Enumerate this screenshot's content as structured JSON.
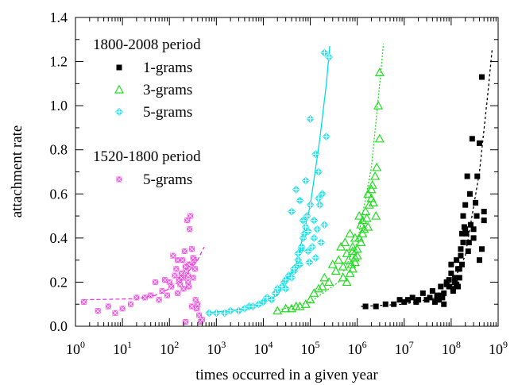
{
  "chart_data": {
    "type": "scatter",
    "title": "",
    "xlabel": "times occurred in a given year",
    "ylabel": "attachment rate",
    "x_scale": "log",
    "xlim": [
      1,
      1000000000
    ],
    "ylim": [
      0,
      1.4
    ],
    "x_ticks": [
      {
        "base": "10",
        "exp": "0"
      },
      {
        "base": "10",
        "exp": "1"
      },
      {
        "base": "10",
        "exp": "2"
      },
      {
        "base": "10",
        "exp": "3"
      },
      {
        "base": "10",
        "exp": "4"
      },
      {
        "base": "10",
        "exp": "5"
      },
      {
        "base": "10",
        "exp": "6"
      },
      {
        "base": "10",
        "exp": "7"
      },
      {
        "base": "10",
        "exp": "8"
      },
      {
        "base": "10",
        "exp": "9"
      }
    ],
    "y_ticks": [
      "0.0",
      "0.2",
      "0.4",
      "0.6",
      "0.8",
      "1.0",
      "1.2",
      "1.4"
    ],
    "grid": false,
    "legend_groups": [
      {
        "heading": "1800-2008 period",
        "entries": [
          {
            "label": "1-grams",
            "series": "s1"
          },
          {
            "label": "3-grams",
            "series": "s3"
          },
          {
            "label": "5-grams",
            "series": "s5"
          }
        ]
      },
      {
        "heading": "1520-1800 period",
        "entries": [
          {
            "label": "5-grams",
            "series": "sh"
          }
        ]
      }
    ],
    "series": [
      {
        "id": "sh",
        "color": "#ee33dd",
        "marker": "square-cross",
        "x": [
          1.5,
          3,
          5,
          7,
          10,
          15,
          20,
          30,
          40,
          50,
          60,
          70,
          80,
          90,
          100,
          110,
          120,
          130,
          140,
          150,
          160,
          170,
          180,
          190,
          200,
          210,
          220,
          230,
          240,
          250,
          260,
          270,
          280,
          300,
          320,
          340,
          360,
          380,
          400,
          430,
          460,
          500,
          150,
          200,
          250,
          300,
          220,
          180,
          280,
          350,
          260,
          320
        ],
        "y": [
          0.11,
          0.07,
          0.09,
          0.06,
          0.08,
          0.1,
          0.13,
          0.13,
          0.14,
          0.2,
          0.12,
          0.16,
          0.21,
          0.14,
          0.2,
          0.18,
          0.32,
          0.23,
          0.26,
          0.3,
          0.21,
          0.19,
          0.24,
          0.3,
          0.22,
          0.34,
          0.27,
          0.25,
          0.48,
          0.2,
          0.18,
          0.44,
          0.28,
          0.35,
          0.22,
          0.3,
          0.12,
          0.08,
          0.1,
          0.05,
          0.02,
          0.03,
          0.15,
          0.17,
          0.23,
          0.09,
          0.02,
          0.22,
          0.5,
          0.26,
          0.28,
          0.31
        ],
        "fit": {
          "x": [
            1.5,
            20,
            50,
            100,
            200,
            400,
            550
          ],
          "y": [
            0.12,
            0.125,
            0.14,
            0.17,
            0.22,
            0.3,
            0.36
          ]
        }
      },
      {
        "id": "s5",
        "color": "#00dde6",
        "marker": "plus-diamond",
        "x": [
          700,
          1000,
          1500,
          2000,
          3000,
          4000,
          5000,
          6000,
          8000,
          10000,
          12000,
          15000,
          18000,
          20000,
          25000,
          28000,
          30000,
          35000,
          40000,
          45000,
          50000,
          55000,
          60000,
          65000,
          70000,
          75000,
          80000,
          90000,
          100000,
          110000,
          120000,
          130000,
          150000,
          170000,
          200000,
          220000,
          250000,
          40000,
          50000,
          60000,
          70000,
          80000,
          90000,
          100000,
          120000,
          140000,
          160000,
          180000,
          30000,
          45000,
          55000,
          65000,
          85000,
          95000,
          130000,
          150000,
          200000
        ],
        "y": [
          0.06,
          0.06,
          0.06,
          0.07,
          0.07,
          0.08,
          0.09,
          0.09,
          0.1,
          0.11,
          0.13,
          0.12,
          0.15,
          0.17,
          0.18,
          0.2,
          0.17,
          0.23,
          0.22,
          0.25,
          0.27,
          0.3,
          0.28,
          0.35,
          0.4,
          0.42,
          0.45,
          0.43,
          0.55,
          0.36,
          0.48,
          0.31,
          0.58,
          0.38,
          0.46,
          0.86,
          1.22,
          0.52,
          0.62,
          0.57,
          0.48,
          0.66,
          0.34,
          0.94,
          0.4,
          0.44,
          0.55,
          0.6,
          0.21,
          0.26,
          0.33,
          0.36,
          0.5,
          0.29,
          0.78,
          0.7,
          1.24
        ],
        "fit": {
          "x": [
            600,
            5000,
            20000,
            50000,
            100000,
            160000,
            220000,
            260000
          ],
          "y": [
            0.06,
            0.08,
            0.14,
            0.28,
            0.55,
            0.85,
            1.1,
            1.27
          ]
        }
      },
      {
        "id": "s3",
        "color": "#22dd22",
        "marker": "triangle",
        "x": [
          20000,
          30000,
          40000,
          50000,
          60000,
          80000,
          100000,
          120000,
          150000,
          180000,
          200000,
          250000,
          300000,
          350000,
          400000,
          450000,
          500000,
          550000,
          600000,
          650000,
          700000,
          750000,
          800000,
          900000,
          1000000,
          1100000,
          1200000,
          1300000,
          1500000,
          1700000,
          2000000,
          2200000,
          2500000,
          2800000,
          3000000,
          600000,
          700000,
          800000,
          900000,
          1000000,
          1200000,
          1400000,
          1600000,
          1800000,
          2000000,
          2400000,
          500000,
          900000,
          1300000,
          1700000,
          2100000,
          2600000,
          3000000,
          800000,
          1100000
        ],
        "y": [
          0.07,
          0.08,
          0.08,
          0.09,
          0.09,
          0.1,
          0.12,
          0.15,
          0.17,
          0.18,
          0.22,
          0.2,
          0.28,
          0.25,
          0.3,
          0.36,
          0.27,
          0.38,
          0.33,
          0.3,
          0.42,
          0.28,
          0.36,
          0.4,
          0.32,
          0.5,
          0.46,
          0.42,
          0.52,
          0.45,
          0.62,
          0.56,
          0.5,
          1.0,
          1.15,
          0.2,
          0.24,
          0.26,
          0.31,
          0.35,
          0.38,
          0.44,
          0.49,
          0.55,
          0.58,
          0.68,
          0.22,
          0.29,
          0.48,
          0.6,
          0.64,
          0.72,
          0.85,
          0.34,
          0.4
        ],
        "fit": {
          "x": [
            18000,
            100000,
            400000,
            1000000,
            2000000,
            3000000,
            3600000
          ],
          "y": [
            0.07,
            0.11,
            0.2,
            0.38,
            0.72,
            1.1,
            1.28
          ]
        }
      },
      {
        "id": "s1",
        "color": "#000000",
        "marker": "square",
        "x": [
          1500000,
          2500000,
          4000000,
          6000000,
          8000000,
          10000000,
          12000000,
          15000000,
          18000000,
          20000000,
          25000000,
          30000000,
          35000000,
          40000000,
          45000000,
          50000000,
          55000000,
          60000000,
          65000000,
          70000000,
          80000000,
          90000000,
          100000000,
          110000000,
          120000000,
          130000000,
          140000000,
          150000000,
          160000000,
          170000000,
          180000000,
          200000000,
          220000000,
          240000000,
          260000000,
          280000000,
          300000000,
          330000000,
          360000000,
          400000000,
          450000000,
          500000000,
          50000000,
          60000000,
          70000000,
          80000000,
          90000000,
          100000000,
          120000000,
          140000000,
          160000000,
          180000000,
          200000000,
          250000000,
          300000000,
          350000000,
          400000000,
          450000000,
          500000000,
          110000000,
          130000000,
          150000000,
          170000000,
          190000000,
          210000000,
          230000000
        ],
        "y": [
          0.09,
          0.09,
          0.1,
          0.1,
          0.12,
          0.11,
          0.12,
          0.13,
          0.11,
          0.12,
          0.15,
          0.12,
          0.13,
          0.16,
          0.11,
          0.14,
          0.12,
          0.18,
          0.13,
          0.15,
          0.2,
          0.18,
          0.28,
          0.16,
          0.22,
          0.3,
          0.18,
          0.26,
          0.35,
          0.42,
          0.5,
          0.55,
          0.68,
          0.38,
          0.46,
          0.85,
          0.44,
          0.56,
          0.68,
          0.83,
          1.13,
          0.52,
          0.12,
          0.14,
          0.1,
          0.19,
          0.21,
          0.24,
          0.2,
          0.26,
          0.32,
          0.38,
          0.44,
          0.6,
          0.4,
          0.5,
          0.3,
          0.35,
          0.48,
          0.17,
          0.19,
          0.22,
          0.28,
          0.45,
          0.42,
          0.34
        ],
        "fit": {
          "x": [
            1200000,
            10000000,
            50000000,
            100000000,
            200000000,
            400000000,
            600000000,
            750000000
          ],
          "y": [
            0.09,
            0.1,
            0.13,
            0.18,
            0.32,
            0.7,
            1.05,
            1.26
          ]
        }
      }
    ]
  }
}
